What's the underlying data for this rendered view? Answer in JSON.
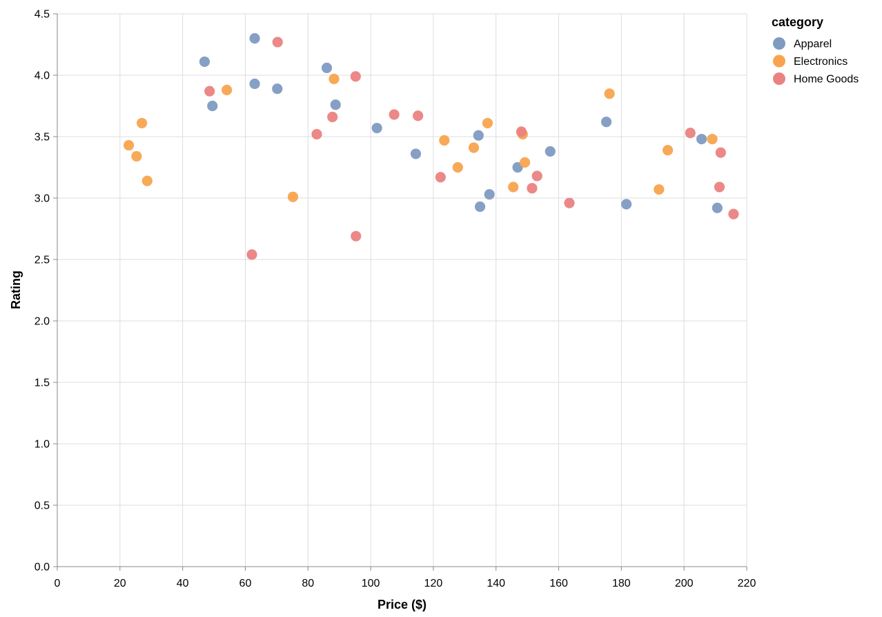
{
  "chart_data": {
    "type": "scatter",
    "xlabel": "Price ($)",
    "ylabel": "Rating",
    "xlim": [
      0,
      220
    ],
    "ylim": [
      0,
      4.5
    ],
    "x_ticks": [
      "0",
      "20",
      "40",
      "60",
      "80",
      "100",
      "120",
      "140",
      "160",
      "180",
      "200",
      "220"
    ],
    "y_ticks": [
      "0.0",
      "0.5",
      "1.0",
      "1.5",
      "2.0",
      "2.5",
      "3.0",
      "3.5",
      "4.0",
      "4.5"
    ],
    "grid": true,
    "legend": {
      "title": "category",
      "placement": "top-right"
    },
    "series": [
      {
        "name": "Apparel",
        "color": "#7f9bc2",
        "points": [
          [
            47,
            4.11
          ],
          [
            49.5,
            3.75
          ],
          [
            63,
            4.3
          ],
          [
            63,
            3.93
          ],
          [
            70.2,
            3.89
          ],
          [
            86,
            4.06
          ],
          [
            88.8,
            3.76
          ],
          [
            102,
            3.57
          ],
          [
            114.4,
            3.36
          ],
          [
            134.4,
            3.51
          ],
          [
            134.9,
            2.93
          ],
          [
            137.9,
            3.03
          ],
          [
            146.9,
            3.25
          ],
          [
            157.3,
            3.38
          ],
          [
            175.2,
            3.62
          ],
          [
            181.6,
            2.95
          ],
          [
            205.6,
            3.48
          ],
          [
            210.6,
            2.92
          ]
        ]
      },
      {
        "name": "Electronics",
        "color": "#f8a44e",
        "points": [
          [
            22.8,
            3.43
          ],
          [
            25.3,
            3.34
          ],
          [
            27,
            3.61
          ],
          [
            28.7,
            3.14
          ],
          [
            54.1,
            3.88
          ],
          [
            75.2,
            3.01
          ],
          [
            88.3,
            3.97
          ],
          [
            123.5,
            3.47
          ],
          [
            127.8,
            3.25
          ],
          [
            132.9,
            3.41
          ],
          [
            137.3,
            3.61
          ],
          [
            145.5,
            3.09
          ],
          [
            148.5,
            3.52
          ],
          [
            149.2,
            3.29
          ],
          [
            176.2,
            3.85
          ],
          [
            192,
            3.07
          ],
          [
            194.8,
            3.39
          ],
          [
            209,
            3.48
          ]
        ]
      },
      {
        "name": "Home Goods",
        "color": "#eb8282",
        "points": [
          [
            48.6,
            3.87
          ],
          [
            62.1,
            2.54
          ],
          [
            70.3,
            4.27
          ],
          [
            82.8,
            3.52
          ],
          [
            87.8,
            3.66
          ],
          [
            95.2,
            3.99
          ],
          [
            95.3,
            2.69
          ],
          [
            107.5,
            3.68
          ],
          [
            115.1,
            3.67
          ],
          [
            122.3,
            3.17
          ],
          [
            148.1,
            3.54
          ],
          [
            151.5,
            3.08
          ],
          [
            153.1,
            3.18
          ],
          [
            163.4,
            2.96
          ],
          [
            202,
            3.53
          ],
          [
            211.3,
            3.09
          ],
          [
            211.7,
            3.37
          ],
          [
            215.8,
            2.87
          ]
        ]
      }
    ]
  }
}
